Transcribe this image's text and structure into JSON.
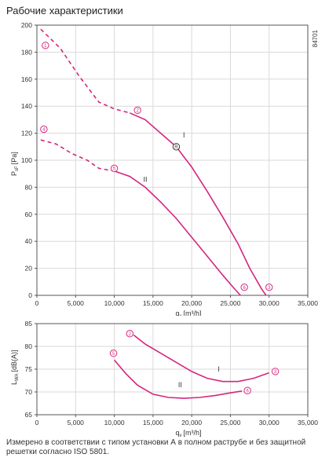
{
  "page": {
    "title": "Рабочие характеристики",
    "code": "84701",
    "footnote": "Измерено в соответствии с типом установки А в полном раструбе и без защитной решетки согласно ISO 5801."
  },
  "colors": {
    "curve": "#d4267e",
    "axis": "#555555",
    "grid": "#d9d9d9",
    "text": "#333333"
  },
  "chart_data": [
    {
      "type": "line",
      "xlabel_main": "q",
      "xlabel_sub": "v",
      "xlabel_unit": "[m³/h]",
      "ylabel_main": "P",
      "ylabel_sub": "sF",
      "ylabel_unit": "[Pa]",
      "xlim": [
        0,
        35000
      ],
      "ylim": [
        0,
        200
      ],
      "xticks": [
        "0",
        "5,000",
        "10,000",
        "15,000",
        "20,000",
        "25,000",
        "30,000",
        "35,000"
      ],
      "yticks": [
        "0",
        "20",
        "40",
        "60",
        "80",
        "100",
        "120",
        "140",
        "160",
        "180",
        "200"
      ],
      "grid": true,
      "series": [
        {
          "name": "I",
          "dashed": [
            [
              500,
              197
            ],
            [
              3000,
              183
            ],
            [
              5500,
              162
            ],
            [
              8000,
              143
            ],
            [
              10000,
              138
            ],
            [
              12000,
              135
            ]
          ],
          "solid": [
            [
              12000,
              135
            ],
            [
              14000,
              130
            ],
            [
              16000,
              120
            ],
            [
              18000,
              110
            ],
            [
              20000,
              95
            ],
            [
              22000,
              77
            ],
            [
              24000,
              58
            ],
            [
              26000,
              38
            ],
            [
              27500,
              20
            ],
            [
              29000,
              5
            ],
            [
              29600,
              0
            ]
          ]
        },
        {
          "name": "II",
          "dashed": [
            [
              500,
              115
            ],
            [
              2500,
              112
            ],
            [
              4500,
              105
            ],
            [
              6500,
              100
            ],
            [
              8000,
              94
            ],
            [
              10000,
              92
            ]
          ],
          "solid": [
            [
              10000,
              92
            ],
            [
              12000,
              88
            ],
            [
              14000,
              80
            ],
            [
              16000,
              69
            ],
            [
              18000,
              57
            ],
            [
              20000,
              43
            ],
            [
              22000,
              29
            ],
            [
              24000,
              15
            ],
            [
              25500,
              5
            ],
            [
              26300,
              0
            ]
          ]
        }
      ],
      "markers": [
        {
          "label": "1",
          "x": 1100,
          "y": 185
        },
        {
          "label": "2",
          "x": 13000,
          "y": 137
        },
        {
          "label": "3",
          "x": 30000,
          "y": 6
        },
        {
          "label": "4",
          "x": 900,
          "y": 123
        },
        {
          "label": "5",
          "x": 10000,
          "y": 94
        },
        {
          "label": "6",
          "x": 26800,
          "y": 6
        },
        {
          "label": "R",
          "x": 18000,
          "y": 110,
          "ring": true
        }
      ],
      "curve_labels": [
        {
          "text": "I",
          "x": 19000,
          "y": 117
        },
        {
          "text": "II",
          "x": 14000,
          "y": 84
        }
      ]
    },
    {
      "type": "line",
      "xlabel_main": "q",
      "xlabel_sub": "v",
      "xlabel_unit": "[m³/h]",
      "ylabel_main": "L",
      "ylabel_sub": "WA",
      "ylabel_unit": "[dB(A)]",
      "xlim": [
        0,
        35000
      ],
      "ylim": [
        65,
        85
      ],
      "xticks": [
        "0",
        "5,000",
        "10,000",
        "15,000",
        "20,000",
        "25,000",
        "30,000",
        "35,000"
      ],
      "yticks": [
        "65",
        "70",
        "75",
        "80",
        "85"
      ],
      "grid": true,
      "series": [
        {
          "name": "I",
          "solid": [
            [
              12500,
              82.5
            ],
            [
              14000,
              80.5
            ],
            [
              16000,
              78.5
            ],
            [
              18000,
              76.5
            ],
            [
              20000,
              74.5
            ],
            [
              22000,
              73
            ],
            [
              24000,
              72.3
            ],
            [
              26000,
              72.3
            ],
            [
              28000,
              73
            ],
            [
              30000,
              74.2
            ]
          ]
        },
        {
          "name": "II",
          "solid": [
            [
              10000,
              77
            ],
            [
              11500,
              74
            ],
            [
              13000,
              71.5
            ],
            [
              15000,
              69.5
            ],
            [
              17000,
              68.8
            ],
            [
              19000,
              68.6
            ],
            [
              21000,
              68.8
            ],
            [
              23000,
              69.2
            ],
            [
              25000,
              69.8
            ],
            [
              26500,
              70.2
            ]
          ]
        }
      ],
      "markers": [
        {
          "label": "2",
          "x": 12000,
          "y": 82.8
        },
        {
          "label": "5",
          "x": 9900,
          "y": 78.5
        },
        {
          "label": "3",
          "x": 30800,
          "y": 74.5
        },
        {
          "label": "6",
          "x": 27200,
          "y": 70.3
        }
      ],
      "curve_labels": [
        {
          "text": "I",
          "x": 23500,
          "y": 74.5
        },
        {
          "text": "II",
          "x": 18500,
          "y": 71
        }
      ]
    }
  ]
}
